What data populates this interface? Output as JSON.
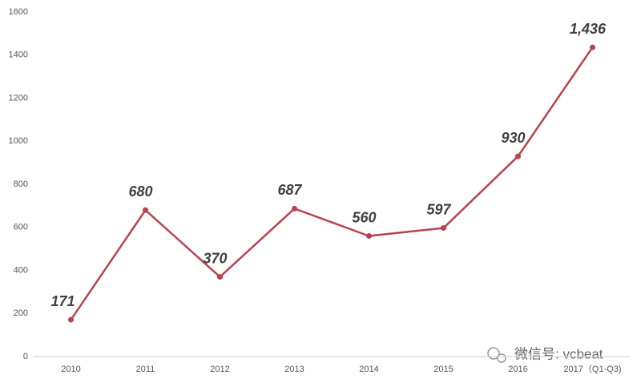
{
  "chart_data": {
    "type": "line",
    "categories": [
      "2010",
      "2011",
      "2012",
      "2013",
      "2014",
      "2015",
      "2016",
      "2017（Q1-Q3)"
    ],
    "series": [
      {
        "color": "#b8434b",
        "values": [
          171,
          680,
          370,
          687,
          560,
          597,
          930,
          1436
        ],
        "value_labels": [
          "171",
          "680",
          "370",
          "687",
          "560",
          "597",
          "930",
          "1,436"
        ]
      }
    ],
    "ylim": [
      0,
      1600
    ],
    "yticks": [
      0,
      200,
      400,
      600,
      800,
      1000,
      1200,
      1400,
      1600
    ],
    "grid": false,
    "watermark": "微信号: vcbeat"
  }
}
